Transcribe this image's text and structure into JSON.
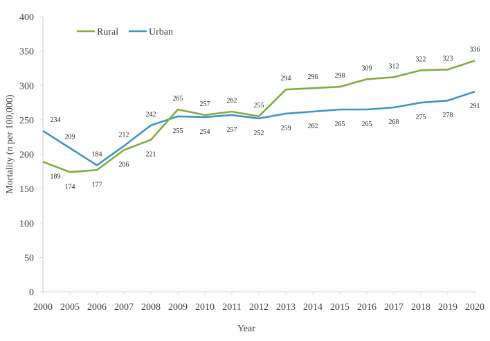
{
  "chart_data": {
    "type": "line",
    "categories": [
      "2000",
      "2005",
      "2006",
      "2007",
      "2008",
      "2009",
      "2010",
      "2011",
      "2012",
      "2013",
      "2014",
      "2015",
      "2016",
      "2017",
      "2018",
      "2019",
      "2020"
    ],
    "series": [
      {
        "name": "Rural",
        "color": "#7fad3e",
        "values": [
          189,
          174,
          177,
          206,
          221,
          265,
          257,
          262,
          255,
          294,
          296,
          298,
          309,
          312,
          322,
          323,
          336
        ]
      },
      {
        "name": "Urban",
        "color": "#3d93c6",
        "values": [
          234,
          209,
          184,
          212,
          242,
          255,
          254,
          257,
          252,
          259,
          262,
          265,
          265,
          268,
          275,
          278,
          291
        ]
      }
    ],
    "title": "",
    "xlabel": "Year",
    "ylabel_prefix": "Mortality (",
    "ylabel_italic": "n",
    "ylabel_suffix": " per 100,000)",
    "ylim": [
      0,
      400
    ],
    "yticks": [
      0,
      50,
      100,
      150,
      200,
      250,
      300,
      350,
      400
    ],
    "grid": false,
    "legend": "top-left",
    "axis_color": "#d9d9d9"
  }
}
